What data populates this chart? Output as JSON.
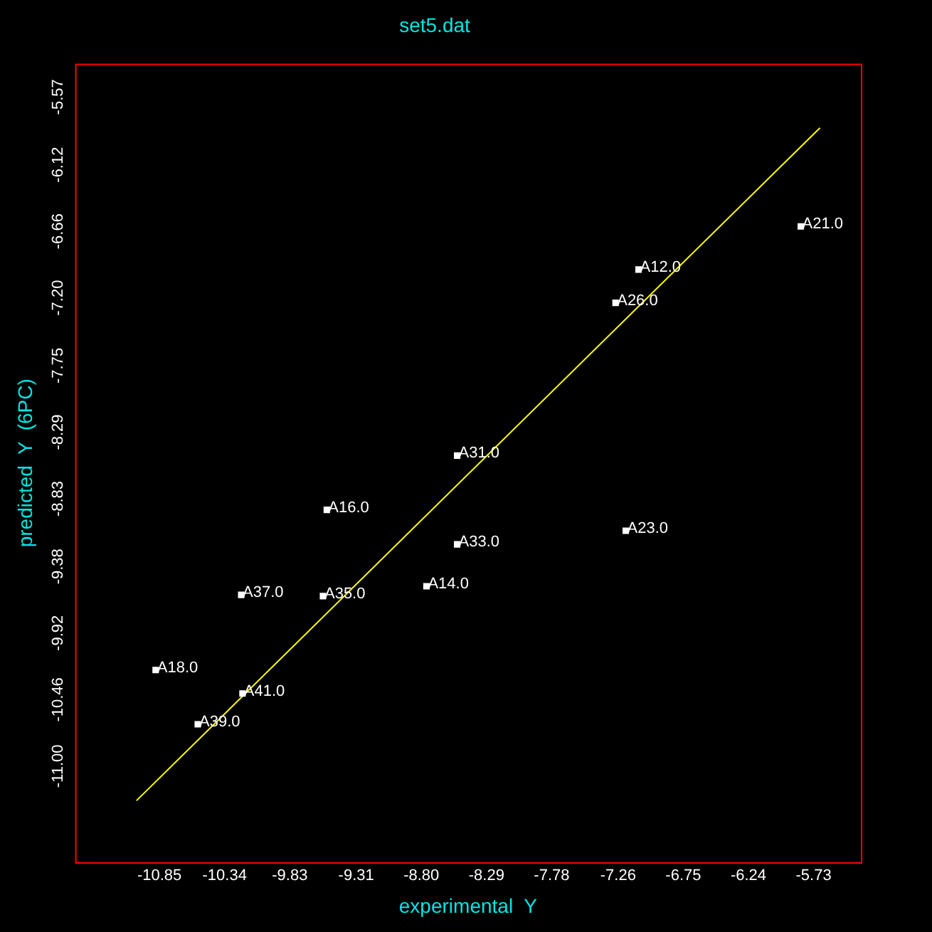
{
  "chart_data": {
    "type": "scatter",
    "title": "set5.dat",
    "xlabel": "experimental  Y",
    "ylabel": "predicted  Y  (6PC)",
    "xlim": [
      -11.51,
      -5.36
    ],
    "ylim": [
      -11.78,
      -5.3
    ],
    "xticks": [
      {
        "value": -10.85,
        "label": "-10.85"
      },
      {
        "value": -10.34,
        "label": "-10.34"
      },
      {
        "value": -9.83,
        "label": "-9.83"
      },
      {
        "value": -9.31,
        "label": "-9.31"
      },
      {
        "value": -8.8,
        "label": "-8.80"
      },
      {
        "value": -8.29,
        "label": "-8.29"
      },
      {
        "value": -7.78,
        "label": "-7.78"
      },
      {
        "value": -7.26,
        "label": "-7.26"
      },
      {
        "value": -6.75,
        "label": "-6.75"
      },
      {
        "value": -6.24,
        "label": "-6.24"
      },
      {
        "value": -5.73,
        "label": "-5.73"
      }
    ],
    "yticks": [
      {
        "value": -11.0,
        "label": "-11.00"
      },
      {
        "value": -10.46,
        "label": "-10.46"
      },
      {
        "value": -9.92,
        "label": "-9.92"
      },
      {
        "value": -9.38,
        "label": "-9.38"
      },
      {
        "value": -8.83,
        "label": "-8.83"
      },
      {
        "value": -8.29,
        "label": "-8.29"
      },
      {
        "value": -7.75,
        "label": "-7.75"
      },
      {
        "value": -7.2,
        "label": "-7.20"
      },
      {
        "value": -6.66,
        "label": "-6.66"
      },
      {
        "value": -6.12,
        "label": "-6.12"
      },
      {
        "value": -5.57,
        "label": "-5.57"
      }
    ],
    "grid": false,
    "legend": false,
    "marker": "square",
    "series": [
      {
        "type": "scatter",
        "color": "#ffffff",
        "x": [
          -5.83,
          -7.1,
          -7.28,
          -8.52,
          -9.54,
          -8.52,
          -7.2,
          -8.76,
          -10.21,
          -9.57,
          -10.88,
          -10.2,
          -10.55
        ],
        "values": [
          -6.62,
          -6.97,
          -7.24,
          -8.48,
          -8.92,
          -9.2,
          -9.09,
          -9.54,
          -9.61,
          -9.62,
          -10.22,
          -10.41,
          -10.66
        ]
      },
      {
        "type": "line",
        "color": "#ffff00",
        "marker": "none",
        "x": [
          -11.03,
          -5.68
        ],
        "values": [
          -11.28,
          -5.82
        ]
      }
    ],
    "annotations": [
      {
        "text": "A21.0",
        "x": -5.83,
        "y": -6.62
      },
      {
        "text": "A12.0",
        "x": -7.1,
        "y": -6.97
      },
      {
        "text": "A26.0",
        "x": -7.28,
        "y": -7.24
      },
      {
        "text": "A31.0",
        "x": -8.52,
        "y": -8.48
      },
      {
        "text": "A16.0",
        "x": -9.54,
        "y": -8.92
      },
      {
        "text": "A33.0",
        "x": -8.52,
        "y": -9.2
      },
      {
        "text": "A23.0",
        "x": -7.2,
        "y": -9.09
      },
      {
        "text": "A14.0",
        "x": -8.76,
        "y": -9.54
      },
      {
        "text": "A37.0",
        "x": -10.21,
        "y": -9.61
      },
      {
        "text": "A35.0",
        "x": -9.57,
        "y": -9.62
      },
      {
        "text": "A18.0",
        "x": -10.88,
        "y": -10.22
      },
      {
        "text": "A41.0",
        "x": -10.2,
        "y": -10.41
      },
      {
        "text": "A39.0",
        "x": -10.55,
        "y": -10.66
      }
    ]
  }
}
